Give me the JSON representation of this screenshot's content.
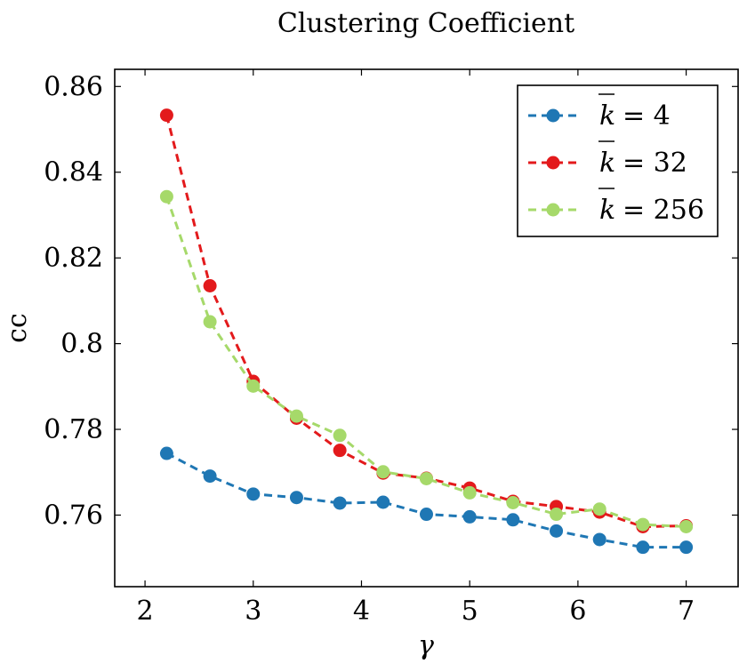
{
  "chart_data": {
    "type": "line",
    "title": "Clustering Coefficient",
    "xlabel": "γ",
    "ylabel": "cc",
    "xlim": [
      1.72,
      7.48
    ],
    "ylim": [
      0.7433,
      0.864
    ],
    "xticks": [
      2,
      3,
      4,
      5,
      6,
      7
    ],
    "xtick_labels": [
      "2",
      "3",
      "4",
      "5",
      "6",
      "7"
    ],
    "yticks": [
      0.76,
      0.78,
      0.8,
      0.82,
      0.84,
      0.86
    ],
    "ytick_labels": [
      "0.76",
      "0.78",
      "0.8",
      "0.82",
      "0.84",
      "0.86"
    ],
    "grid": false,
    "legend_position": "top-right",
    "x": [
      2.2,
      2.6,
      3.0,
      3.4,
      3.8,
      4.2,
      4.6,
      5.0,
      5.4,
      5.8,
      6.2,
      6.6,
      7.0
    ],
    "series": [
      {
        "name": "k̄ = 4",
        "legend_k": "k",
        "legend_value": "= 4",
        "color": "#1f77b4",
        "values": [
          0.7744,
          0.7691,
          0.7649,
          0.7641,
          0.7628,
          0.763,
          0.7602,
          0.7596,
          0.7589,
          0.7563,
          0.7543,
          0.7525,
          0.7525
        ]
      },
      {
        "name": "k̄ = 32",
        "legend_k": "k",
        "legend_value": "= 32",
        "color": "#e31a1c",
        "values": [
          0.8533,
          0.8135,
          0.7912,
          0.7826,
          0.7751,
          0.7698,
          0.7686,
          0.7663,
          0.7632,
          0.762,
          0.7607,
          0.7573,
          0.7575
        ]
      },
      {
        "name": "k̄ = 256",
        "legend_k": "k",
        "legend_value": "= 256",
        "color": "#a6d96a",
        "values": [
          0.8343,
          0.8051,
          0.7901,
          0.7831,
          0.7786,
          0.7701,
          0.7685,
          0.7652,
          0.7629,
          0.7602,
          0.7614,
          0.7578,
          0.7573
        ]
      }
    ]
  }
}
